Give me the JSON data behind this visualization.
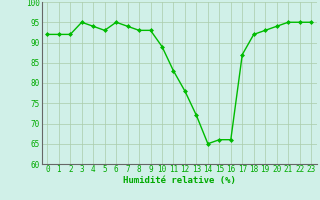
{
  "x": [
    0,
    1,
    2,
    3,
    4,
    5,
    6,
    7,
    8,
    9,
    10,
    11,
    12,
    13,
    14,
    15,
    16,
    17,
    18,
    19,
    20,
    21,
    22,
    23
  ],
  "y": [
    92,
    92,
    92,
    95,
    94,
    93,
    95,
    94,
    93,
    93,
    89,
    83,
    78,
    72,
    65,
    66,
    66,
    87,
    92,
    93,
    94,
    95,
    95,
    95
  ],
  "line_color": "#00bb00",
  "marker": "D",
  "marker_size": 2.0,
  "bg_color": "#d0f0e8",
  "grid_color": "#aaccaa",
  "xlabel": "Humidité relative (%)",
  "xlabel_color": "#00aa00",
  "xlabel_fontsize": 6.5,
  "tick_color": "#00aa00",
  "tick_fontsize": 5.5,
  "ylim": [
    60,
    100
  ],
  "yticks": [
    60,
    65,
    70,
    75,
    80,
    85,
    90,
    95,
    100
  ],
  "xlim": [
    -0.5,
    23.5
  ],
  "line_width": 1.0
}
